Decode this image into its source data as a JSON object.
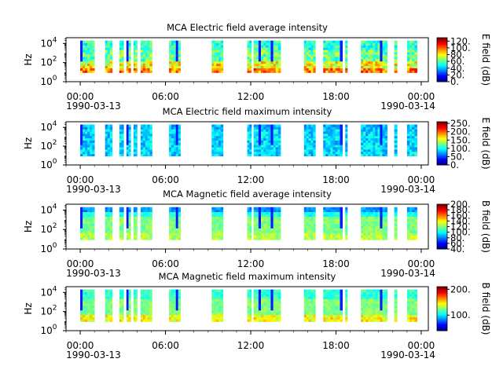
{
  "chart_data": [
    {
      "type": "heatmap",
      "title": "MCA  Electric field average intensity",
      "ylabel": "Hz",
      "yscale": "log",
      "y_ticks": [
        "10^0",
        "10^2",
        "10^4"
      ],
      "x_ticks": [
        "00:00",
        "06:00",
        "12:00",
        "18:00",
        "00:00"
      ],
      "x_dates": [
        "1990-03-13",
        "1990-03-14"
      ],
      "xlim": [
        "1990-03-12T23:00",
        "1990-03-14T00:30"
      ],
      "colorbar": {
        "label": "E field (dB)",
        "range": [
          0,
          130
        ],
        "ticks": [
          "0.",
          "20.",
          "40.",
          "60.",
          "80.",
          "100.",
          "120."
        ]
      },
      "profile": "e-avg"
    },
    {
      "type": "heatmap",
      "title": "MCA  Electric field maximum intensity",
      "ylabel": "Hz",
      "yscale": "log",
      "y_ticks": [
        "10^0",
        "10^2",
        "10^4"
      ],
      "x_ticks": [
        "00:00",
        "06:00",
        "12:00",
        "18:00",
        "00:00"
      ],
      "x_dates": [
        "1990-03-13",
        "1990-03-14"
      ],
      "xlim": [
        "1990-03-12T23:00",
        "1990-03-14T00:30"
      ],
      "colorbar": {
        "label": "E field (dB)",
        "range": [
          0,
          260
        ],
        "ticks": [
          "0.",
          "50.",
          "100.",
          "150.",
          "200.",
          "250."
        ]
      },
      "profile": "e-max"
    },
    {
      "type": "heatmap",
      "title": "MCA  Magnetic field average intensity",
      "ylabel": "Hz",
      "yscale": "log",
      "y_ticks": [
        "10^0",
        "10^2",
        "10^4"
      ],
      "x_ticks": [
        "00:00",
        "06:00",
        "12:00",
        "18:00",
        "00:00"
      ],
      "x_dates": [
        "1990-03-13",
        "1990-03-14"
      ],
      "xlim": [
        "1990-03-12T23:00",
        "1990-03-14T00:30"
      ],
      "colorbar": {
        "label": "B field (dB)",
        "range": [
          40,
          200
        ],
        "ticks": [
          "40.",
          "60.",
          "80.",
          "100.",
          "120.",
          "140.",
          "160.",
          "180.",
          "200."
        ]
      },
      "profile": "b-avg"
    },
    {
      "type": "heatmap",
      "title": "MCA  Magnetic field maximum intensity",
      "ylabel": "Hz",
      "yscale": "log",
      "y_ticks": [
        "10^0",
        "10^2",
        "10^4"
      ],
      "x_ticks": [
        "00:00",
        "06:00",
        "12:00",
        "18:00",
        "00:00"
      ],
      "x_dates": [
        "1990-03-13",
        "1990-03-14"
      ],
      "xlim": [
        "1990-03-12T23:00",
        "1990-03-14T00:30"
      ],
      "colorbar": {
        "label": "B field (dB)",
        "range": [
          40,
          210
        ],
        "ticks": [
          "100.",
          "200."
        ]
      },
      "profile": "b-max"
    }
  ],
  "data_segments_hours": [
    [
      0.0,
      1.0
    ],
    [
      1.75,
      2.25
    ],
    [
      2.75,
      3.05
    ],
    [
      3.25,
      3.55
    ],
    [
      3.75,
      4.0
    ],
    [
      4.25,
      5.05
    ],
    [
      6.25,
      7.05
    ],
    [
      9.25,
      10.05
    ],
    [
      11.75,
      12.05
    ],
    [
      12.2,
      14.1
    ],
    [
      15.75,
      16.55
    ],
    [
      17.1,
      18.45
    ],
    [
      18.65,
      18.8
    ],
    [
      19.75,
      21.6
    ],
    [
      22.1,
      22.3
    ],
    [
      23.0,
      23.7
    ]
  ]
}
